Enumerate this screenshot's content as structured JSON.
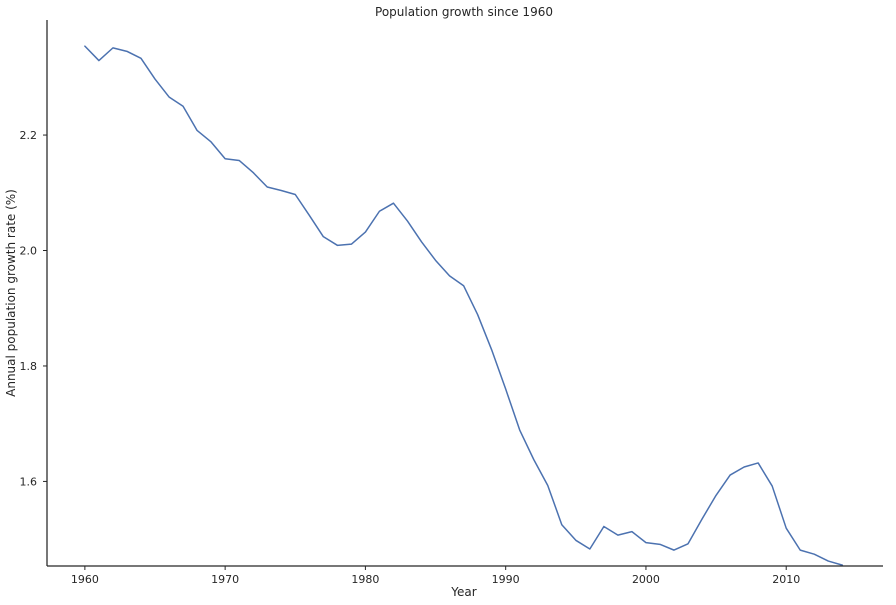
{
  "chart_data": {
    "type": "line",
    "title": "Population growth since 1960",
    "xlabel": "Year",
    "ylabel": "Annual population growth rate (%)",
    "xlim": [
      1957.3,
      2016.9
    ],
    "ylim": [
      1.4535,
      2.3993
    ],
    "xticks": [
      1960,
      1970,
      1980,
      1990,
      2000,
      2010
    ],
    "yticks": [
      1.6,
      1.8,
      2.0,
      2.2
    ],
    "ytick_labels": [
      "1.6",
      "1.8",
      "2.0",
      "2.2"
    ],
    "grid": false,
    "legend": null,
    "colors": {
      "line": "#4c72b0",
      "axis": "#262626"
    },
    "series": [
      {
        "x": [
          1960,
          1961,
          1962,
          1963,
          1964,
          1965,
          1966,
          1967,
          1968,
          1969,
          1970,
          1971,
          1972,
          1973,
          1974,
          1975,
          1976,
          1977,
          1978,
          1979,
          1980,
          1981,
          1982,
          1983,
          1984,
          1985,
          1986,
          1987,
          1988,
          1989,
          1990,
          1991,
          1992,
          1993,
          1994,
          1995,
          1996,
          1997,
          1998,
          1999,
          2000,
          2001,
          2002,
          2003,
          2004,
          2005,
          2006,
          2007,
          2008,
          2009,
          2010,
          2011,
          2012,
          2013,
          2014
        ],
        "values": [
          2.354,
          2.329,
          2.351,
          2.345,
          2.333,
          2.297,
          2.266,
          2.25,
          2.208,
          2.188,
          2.159,
          2.156,
          2.135,
          2.11,
          2.104,
          2.097,
          2.061,
          2.024,
          2.009,
          2.011,
          2.032,
          2.068,
          2.082,
          2.051,
          2.015,
          1.983,
          1.956,
          1.939,
          1.889,
          1.828,
          1.76,
          1.689,
          1.638,
          1.593,
          1.525,
          1.498,
          1.483,
          1.522,
          1.507,
          1.513,
          1.494,
          1.491,
          1.481,
          1.492,
          1.535,
          1.576,
          1.611,
          1.625,
          1.632,
          1.592,
          1.519,
          1.481,
          1.474,
          1.462,
          1.455
        ]
      }
    ]
  }
}
